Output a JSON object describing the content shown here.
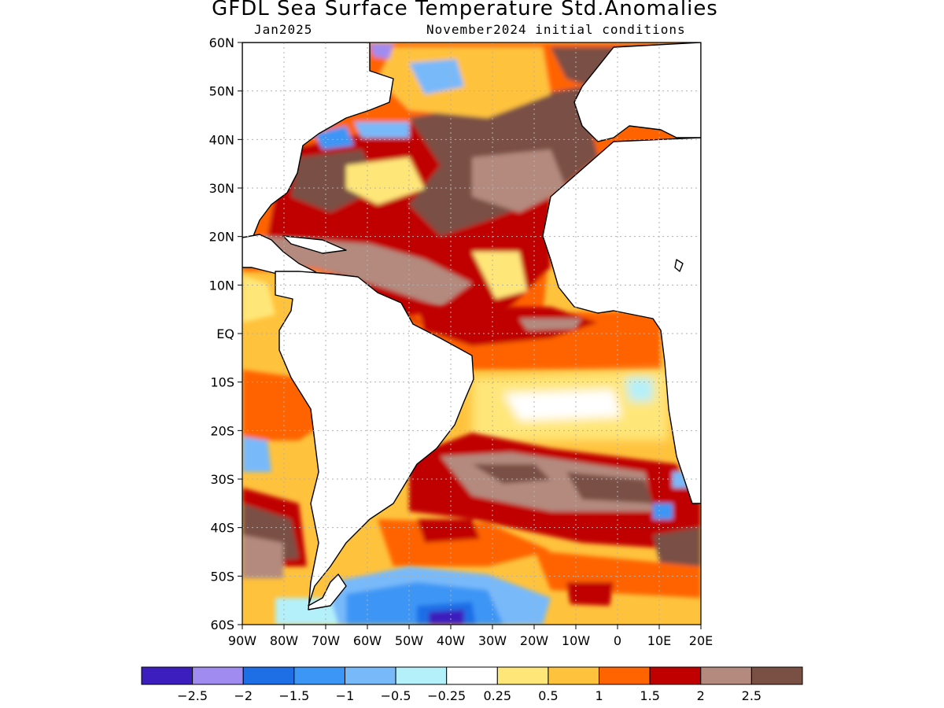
{
  "title": "GFDL Sea Surface Temperature Std.Anomalies",
  "subtitle_left": "Jan2025",
  "subtitle_right": "November2024 initial conditions",
  "map": {
    "lon_range": [
      -90,
      20
    ],
    "lat_range": [
      -60,
      60
    ],
    "lat_labels": [
      {
        "v": 60,
        "t": "60N"
      },
      {
        "v": 50,
        "t": "50N"
      },
      {
        "v": 40,
        "t": "40N"
      },
      {
        "v": 30,
        "t": "30N"
      },
      {
        "v": 20,
        "t": "20N"
      },
      {
        "v": 10,
        "t": "10N"
      },
      {
        "v": 0,
        "t": "EQ"
      },
      {
        "v": -10,
        "t": "10S"
      },
      {
        "v": -20,
        "t": "20S"
      },
      {
        "v": -30,
        "t": "30S"
      },
      {
        "v": -40,
        "t": "40S"
      },
      {
        "v": -50,
        "t": "50S"
      },
      {
        "v": -60,
        "t": "60S"
      }
    ],
    "lon_labels": [
      {
        "v": -90,
        "t": "90W"
      },
      {
        "v": -80,
        "t": "80W"
      },
      {
        "v": -70,
        "t": "70W"
      },
      {
        "v": -60,
        "t": "60W"
      },
      {
        "v": -50,
        "t": "50W"
      },
      {
        "v": -40,
        "t": "40W"
      },
      {
        "v": -30,
        "t": "30W"
      },
      {
        "v": -20,
        "t": "20W"
      },
      {
        "v": -10,
        "t": "10W"
      },
      {
        "v": 0,
        "t": "0"
      },
      {
        "v": 10,
        "t": "10E"
      },
      {
        "v": 20,
        "t": "20E"
      }
    ]
  },
  "colorbar": {
    "colors": [
      "#3c1ebe",
      "#a08cf0",
      "#1e6ee6",
      "#3c96f5",
      "#78b9fa",
      "#b4f0fa",
      "#ffffff",
      "#ffe678",
      "#ffc23c",
      "#ff6400",
      "#c00000",
      "#b48a7e",
      "#7a4f44"
    ],
    "labels": [
      "−2.5",
      "−2",
      "−1.5",
      "−1",
      "−0.5",
      "−0.25",
      "0.25",
      "0.5",
      "1",
      "1.5",
      "2",
      "2.5"
    ]
  }
}
